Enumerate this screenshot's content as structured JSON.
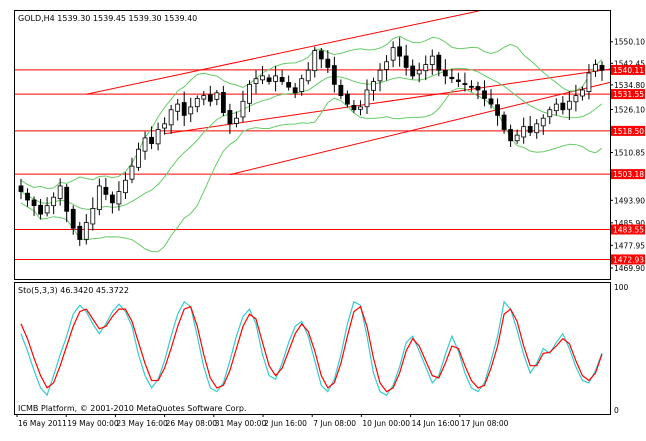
{
  "header": {
    "symbol_title": "GOLD,H4 1539.30 1539.45 1539.30 1539.40",
    "indicator_title": "Sto(5,3,3) 46.3420 45.3722",
    "footer": "ICMB Platform, © 2001-2010 MetaQuotes Software Corp."
  },
  "colors": {
    "background": "#ffffff",
    "candle": "#000000",
    "bollinger": "#66cc66",
    "channel": "#ff0000",
    "level_line": "#ff0000",
    "level_label_bg": "#ff0000",
    "level_label_text": "#ffffff",
    "stoch_main": "#33cccc",
    "stoch_signal": "#ff0000",
    "frame": "#000000"
  },
  "chart_data": [
    {
      "type": "candlestick",
      "symbol": "GOLD",
      "timeframe": "H4",
      "ylim": [
        1466,
        1561
      ],
      "y_ticks": [
        "1550.10",
        "1542.45",
        "1534.80",
        "1526.10",
        "1518.50",
        "1510.85",
        "1503.15",
        "1493.90",
        "1485.90",
        "1477.95",
        "1469.90"
      ],
      "x_tick_labels": [
        "16 May 2011",
        "19 May 00:00",
        "23 May 16:00",
        "26 May 08:00",
        "31 May 00:00",
        "2 Jun 16:00",
        "7 Jun 08:00",
        "10 Jun 00:00",
        "14 Jun 16:00",
        "17 Jun 08:00"
      ],
      "levels": [
        {
          "label": "1540.11",
          "value": 1540.11
        },
        {
          "label": "1531.55",
          "value": 1531.55
        },
        {
          "label": "1518.50",
          "value": 1518.5
        },
        {
          "label": "1503.18",
          "value": 1503.18
        },
        {
          "label": "1483.55",
          "value": 1483.55
        },
        {
          "label": "1472.93",
          "value": 1472.93
        }
      ],
      "channels": [
        {
          "from": [
            10,
            1531.5
          ],
          "to": [
            65,
            1558.5
          ]
        },
        {
          "from": [
            22,
            1517.5
          ],
          "to": [
            89,
            1540.0
          ]
        },
        {
          "from": [
            32,
            1503.0
          ],
          "to": [
            89,
            1535.0
          ]
        }
      ],
      "closes": [
        1497,
        1494,
        1492,
        1489,
        1492,
        1495,
        1499,
        1490,
        1484,
        1480,
        1486,
        1491,
        1499,
        1496,
        1493,
        1497,
        1501,
        1506,
        1512,
        1516,
        1514,
        1519,
        1521,
        1526,
        1528,
        1524,
        1527,
        1530,
        1531,
        1529,
        1532,
        1525,
        1521,
        1523,
        1529,
        1535,
        1537,
        1538,
        1536,
        1538,
        1536,
        1534,
        1532,
        1537,
        1540,
        1547,
        1544,
        1541,
        1535,
        1531,
        1528,
        1526,
        1527,
        1533,
        1536,
        1540,
        1543,
        1548,
        1545,
        1541,
        1538,
        1540,
        1542,
        1545,
        1540,
        1538,
        1537,
        1536,
        1535,
        1534,
        1533,
        1530,
        1528,
        1524,
        1519,
        1515,
        1517,
        1520,
        1518,
        1521,
        1523,
        1526,
        1528,
        1526,
        1529,
        1531,
        1533,
        1539,
        1542,
        1540
      ]
    },
    {
      "type": "line",
      "name": "Sto(5,3,3)",
      "ylim": [
        0,
        100
      ],
      "y_ticks": [
        "100",
        "0"
      ],
      "series": [
        {
          "role": "main",
          "values": [
            62,
            48,
            32,
            18,
            12,
            28,
            45,
            60,
            78,
            85,
            80,
            70,
            62,
            70,
            80,
            86,
            80,
            68,
            45,
            28,
            18,
            25,
            40,
            60,
            78,
            88,
            84,
            60,
            35,
            18,
            15,
            22,
            40,
            60,
            76,
            82,
            70,
            45,
            28,
            25,
            38,
            55,
            68,
            72,
            60,
            40,
            20,
            15,
            25,
            45,
            70,
            88,
            85,
            60,
            30,
            15,
            12,
            20,
            35,
            55,
            60,
            48,
            35,
            22,
            28,
            45,
            60,
            48,
            30,
            18,
            15,
            22,
            40,
            60,
            88,
            82,
            65,
            45,
            30,
            38,
            50,
            46,
            55,
            62,
            50,
            35,
            24,
            22,
            32,
            46.34
          ]
        },
        {
          "role": "signal",
          "values": [
            70,
            58,
            42,
            28,
            18,
            22,
            36,
            52,
            68,
            80,
            82,
            74,
            66,
            68,
            76,
            82,
            82,
            72,
            55,
            38,
            24,
            24,
            34,
            50,
            68,
            82,
            84,
            68,
            45,
            26,
            18,
            20,
            32,
            50,
            68,
            78,
            74,
            55,
            36,
            28,
            34,
            48,
            62,
            70,
            64,
            48,
            28,
            18,
            22,
            38,
            60,
            80,
            84,
            68,
            42,
            22,
            15,
            18,
            30,
            48,
            58,
            52,
            40,
            28,
            26,
            38,
            52,
            50,
            36,
            24,
            18,
            20,
            34,
            52,
            78,
            82,
            72,
            52,
            36,
            36,
            46,
            47,
            52,
            58,
            54,
            40,
            28,
            24,
            30,
            45.37
          ]
        }
      ]
    }
  ]
}
